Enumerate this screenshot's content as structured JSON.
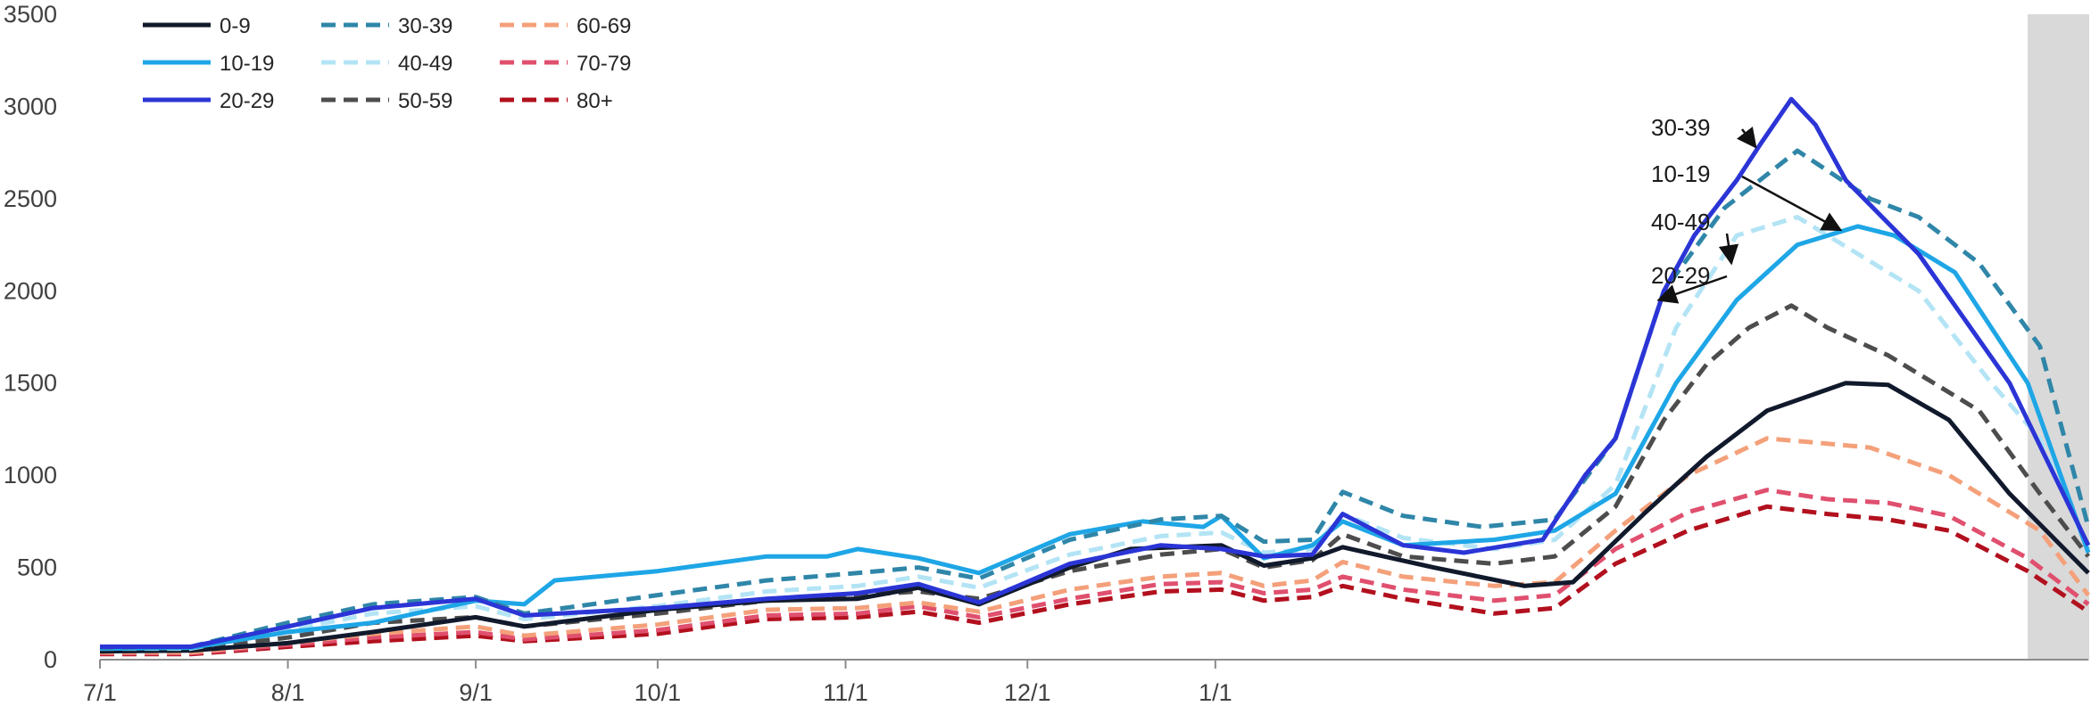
{
  "chart_data": {
    "type": "line",
    "title": "",
    "xlabel": "",
    "ylabel": "",
    "ylim": [
      0,
      3500
    ],
    "y_ticks": [
      "0",
      "500",
      "1000",
      "1500",
      "2000",
      "2500",
      "3000",
      "3500"
    ],
    "x_ticks": [
      "7/1",
      "8/1",
      "9/1",
      "10/1",
      "11/1",
      "12/1",
      "1/1"
    ],
    "grid": false,
    "legend_position": "top-left",
    "shaded_region": {
      "from": "1/27",
      "to": "2/4",
      "color": "#d9d9d9"
    },
    "series": [
      {
        "name": "0-9",
        "color": "#111a2c",
        "dash": "solid",
        "values": [
          [
            0,
            45
          ],
          [
            15,
            50
          ],
          [
            31,
            90
          ],
          [
            45,
            150
          ],
          [
            62,
            230
          ],
          [
            70,
            180
          ],
          [
            92,
            270
          ],
          [
            110,
            320
          ],
          [
            125,
            330
          ],
          [
            135,
            390
          ],
          [
            145,
            300
          ],
          [
            160,
            500
          ],
          [
            170,
            600
          ],
          [
            185,
            620
          ],
          [
            192,
            510
          ],
          [
            200,
            550
          ],
          [
            205,
            610
          ],
          [
            220,
            500
          ],
          [
            235,
            400
          ],
          [
            243,
            420
          ],
          [
            255,
            800
          ],
          [
            265,
            1100
          ],
          [
            275,
            1350
          ],
          [
            288,
            1500
          ],
          [
            295,
            1490
          ],
          [
            305,
            1300
          ],
          [
            315,
            900
          ],
          [
            328,
            470
          ]
        ]
      },
      {
        "name": "10-19",
        "color": "#1ea6e6",
        "dash": "solid",
        "values": [
          [
            0,
            60
          ],
          [
            15,
            65
          ],
          [
            31,
            150
          ],
          [
            45,
            200
          ],
          [
            62,
            320
          ],
          [
            70,
            300
          ],
          [
            75,
            430
          ],
          [
            92,
            480
          ],
          [
            110,
            560
          ],
          [
            120,
            560
          ],
          [
            125,
            600
          ],
          [
            135,
            550
          ],
          [
            145,
            470
          ],
          [
            160,
            680
          ],
          [
            172,
            750
          ],
          [
            182,
            720
          ],
          [
            185,
            780
          ],
          [
            192,
            550
          ],
          [
            200,
            620
          ],
          [
            205,
            750
          ],
          [
            215,
            620
          ],
          [
            230,
            650
          ],
          [
            240,
            700
          ],
          [
            250,
            900
          ],
          [
            260,
            1500
          ],
          [
            270,
            1950
          ],
          [
            280,
            2250
          ],
          [
            290,
            2350
          ],
          [
            296,
            2300
          ],
          [
            306,
            2100
          ],
          [
            318,
            1500
          ],
          [
            328,
            580
          ]
        ]
      },
      {
        "name": "20-29",
        "color": "#2b35d6",
        "dash": "solid",
        "values": [
          [
            0,
            70
          ],
          [
            15,
            70
          ],
          [
            31,
            180
          ],
          [
            45,
            280
          ],
          [
            62,
            330
          ],
          [
            70,
            240
          ],
          [
            92,
            280
          ],
          [
            110,
            330
          ],
          [
            125,
            360
          ],
          [
            135,
            410
          ],
          [
            145,
            310
          ],
          [
            160,
            520
          ],
          [
            175,
            620
          ],
          [
            185,
            600
          ],
          [
            192,
            560
          ],
          [
            200,
            570
          ],
          [
            205,
            790
          ],
          [
            215,
            620
          ],
          [
            225,
            580
          ],
          [
            238,
            650
          ],
          [
            245,
            1000
          ],
          [
            250,
            1200
          ],
          [
            258,
            2000
          ],
          [
            263,
            2300
          ],
          [
            270,
            2600
          ],
          [
            274,
            2800
          ],
          [
            279,
            3040
          ],
          [
            283,
            2900
          ],
          [
            288,
            2600
          ],
          [
            300,
            2200
          ],
          [
            315,
            1500
          ],
          [
            328,
            620
          ]
        ]
      },
      {
        "name": "30-39",
        "color": "#2f86a8",
        "dash": "dash",
        "values": [
          [
            0,
            65
          ],
          [
            15,
            70
          ],
          [
            31,
            200
          ],
          [
            45,
            300
          ],
          [
            62,
            340
          ],
          [
            70,
            250
          ],
          [
            92,
            350
          ],
          [
            110,
            430
          ],
          [
            125,
            470
          ],
          [
            135,
            500
          ],
          [
            145,
            440
          ],
          [
            160,
            650
          ],
          [
            175,
            760
          ],
          [
            185,
            780
          ],
          [
            192,
            640
          ],
          [
            200,
            650
          ],
          [
            205,
            910
          ],
          [
            215,
            780
          ],
          [
            228,
            720
          ],
          [
            240,
            760
          ],
          [
            250,
            1200
          ],
          [
            258,
            2000
          ],
          [
            268,
            2450
          ],
          [
            280,
            2760
          ],
          [
            292,
            2500
          ],
          [
            300,
            2400
          ],
          [
            310,
            2150
          ],
          [
            320,
            1700
          ],
          [
            328,
            720
          ]
        ]
      },
      {
        "name": "40-49",
        "color": "#b3e4f5",
        "dash": "dash",
        "values": [
          [
            0,
            60
          ],
          [
            15,
            60
          ],
          [
            31,
            160
          ],
          [
            45,
            250
          ],
          [
            62,
            290
          ],
          [
            70,
            220
          ],
          [
            92,
            290
          ],
          [
            110,
            370
          ],
          [
            125,
            400
          ],
          [
            135,
            450
          ],
          [
            145,
            390
          ],
          [
            160,
            570
          ],
          [
            175,
            670
          ],
          [
            185,
            690
          ],
          [
            192,
            580
          ],
          [
            200,
            600
          ],
          [
            205,
            790
          ],
          [
            215,
            660
          ],
          [
            230,
            600
          ],
          [
            240,
            650
          ],
          [
            250,
            950
          ],
          [
            260,
            1800
          ],
          [
            270,
            2300
          ],
          [
            280,
            2400
          ],
          [
            290,
            2200
          ],
          [
            300,
            2000
          ],
          [
            312,
            1500
          ],
          [
            320,
            1200
          ],
          [
            328,
            600
          ]
        ]
      },
      {
        "name": "50-59",
        "color": "#4d4d4d",
        "dash": "dash",
        "values": [
          [
            0,
            50
          ],
          [
            15,
            55
          ],
          [
            31,
            120
          ],
          [
            45,
            200
          ],
          [
            62,
            230
          ],
          [
            70,
            180
          ],
          [
            92,
            250
          ],
          [
            110,
            320
          ],
          [
            125,
            350
          ],
          [
            135,
            370
          ],
          [
            145,
            330
          ],
          [
            160,
            480
          ],
          [
            175,
            570
          ],
          [
            185,
            600
          ],
          [
            192,
            500
          ],
          [
            200,
            540
          ],
          [
            205,
            680
          ],
          [
            215,
            560
          ],
          [
            230,
            520
          ],
          [
            240,
            560
          ],
          [
            250,
            830
          ],
          [
            258,
            1300
          ],
          [
            265,
            1600
          ],
          [
            272,
            1800
          ],
          [
            279,
            1920
          ],
          [
            285,
            1800
          ],
          [
            295,
            1650
          ],
          [
            310,
            1350
          ],
          [
            320,
            900
          ],
          [
            328,
            560
          ]
        ]
      },
      {
        "name": "60-69",
        "color": "#f4a07a",
        "dash": "dash",
        "values": [
          [
            0,
            40
          ],
          [
            15,
            40
          ],
          [
            31,
            90
          ],
          [
            45,
            140
          ],
          [
            62,
            180
          ],
          [
            70,
            130
          ],
          [
            92,
            190
          ],
          [
            110,
            270
          ],
          [
            125,
            280
          ],
          [
            135,
            310
          ],
          [
            145,
            260
          ],
          [
            160,
            380
          ],
          [
            175,
            450
          ],
          [
            185,
            470
          ],
          [
            192,
            400
          ],
          [
            200,
            430
          ],
          [
            205,
            530
          ],
          [
            215,
            450
          ],
          [
            230,
            400
          ],
          [
            240,
            420
          ],
          [
            250,
            700
          ],
          [
            262,
            1000
          ],
          [
            275,
            1200
          ],
          [
            282,
            1180
          ],
          [
            292,
            1150
          ],
          [
            305,
            1000
          ],
          [
            320,
            700
          ],
          [
            328,
            350
          ]
        ]
      },
      {
        "name": "70-79",
        "color": "#e0506e",
        "dash": "dash",
        "values": [
          [
            0,
            35
          ],
          [
            15,
            35
          ],
          [
            31,
            80
          ],
          [
            45,
            120
          ],
          [
            62,
            150
          ],
          [
            70,
            110
          ],
          [
            92,
            160
          ],
          [
            110,
            240
          ],
          [
            125,
            250
          ],
          [
            135,
            290
          ],
          [
            145,
            230
          ],
          [
            160,
            330
          ],
          [
            175,
            410
          ],
          [
            185,
            420
          ],
          [
            192,
            360
          ],
          [
            200,
            380
          ],
          [
            205,
            450
          ],
          [
            215,
            380
          ],
          [
            230,
            320
          ],
          [
            240,
            350
          ],
          [
            250,
            600
          ],
          [
            262,
            800
          ],
          [
            275,
            920
          ],
          [
            285,
            870
          ],
          [
            295,
            850
          ],
          [
            305,
            780
          ],
          [
            318,
            550
          ],
          [
            328,
            300
          ]
        ]
      },
      {
        "name": "80+",
        "color": "#b2101e",
        "dash": "dash",
        "values": [
          [
            0,
            30
          ],
          [
            15,
            30
          ],
          [
            31,
            70
          ],
          [
            45,
            100
          ],
          [
            62,
            130
          ],
          [
            70,
            100
          ],
          [
            92,
            140
          ],
          [
            110,
            220
          ],
          [
            125,
            230
          ],
          [
            135,
            260
          ],
          [
            145,
            200
          ],
          [
            160,
            300
          ],
          [
            175,
            370
          ],
          [
            185,
            380
          ],
          [
            192,
            320
          ],
          [
            200,
            340
          ],
          [
            205,
            400
          ],
          [
            215,
            330
          ],
          [
            230,
            250
          ],
          [
            240,
            280
          ],
          [
            250,
            520
          ],
          [
            262,
            700
          ],
          [
            275,
            830
          ],
          [
            285,
            790
          ],
          [
            295,
            760
          ],
          [
            305,
            700
          ],
          [
            318,
            480
          ],
          [
            328,
            260
          ]
        ]
      }
    ],
    "annotations": [
      {
        "text": "30-39",
        "target": [
          274,
          2780
        ]
      },
      {
        "text": "10-19",
        "target": [
          288,
          2330
        ]
      },
      {
        "text": "40-49",
        "target": [
          270,
          2150
        ]
      },
      {
        "text": "20-29",
        "target": [
          258,
          1950
        ]
      }
    ]
  }
}
